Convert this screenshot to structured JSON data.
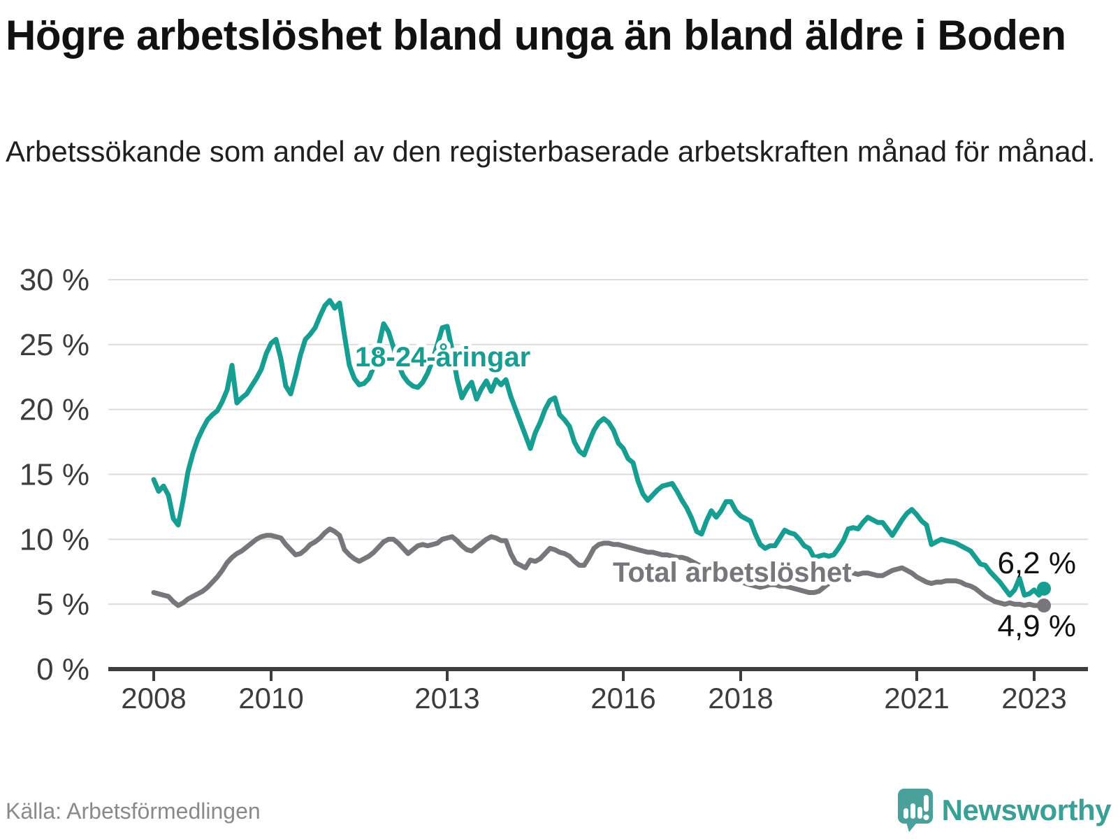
{
  "header": {
    "title": "Högre arbetslöshet bland unga än bland äldre i Boden",
    "subtitle": "Arbetssökande som andel av den registerbaserade arbetskraften månad för månad."
  },
  "footer": {
    "source": "Källa: Arbetsförmedlingen",
    "brand_name": "Newsworthy",
    "brand_color": "#3aa096",
    "brand_icon": "speech-bubble-bar-chart-exclamation"
  },
  "chart_data": {
    "type": "line",
    "title": "Högre arbetslöshet bland unga än bland äldre i Boden",
    "xlabel": "",
    "ylabel": "",
    "ylim": [
      0,
      30
    ],
    "grid": "horizontal",
    "x_start": "2008-01",
    "x_end": "2023-03",
    "x_unit": "month",
    "y_ticks": [
      {
        "label": "0 %",
        "value": 0
      },
      {
        "label": "5 %",
        "value": 5
      },
      {
        "label": "10 %",
        "value": 10
      },
      {
        "label": "15 %",
        "value": 15
      },
      {
        "label": "20 %",
        "value": 20
      },
      {
        "label": "25 %",
        "value": 25
      },
      {
        "label": "30 %",
        "value": 30
      }
    ],
    "x_ticks": [
      {
        "label": "2008",
        "month": 0
      },
      {
        "label": "2010",
        "month": 24
      },
      {
        "label": "2013",
        "month": 60
      },
      {
        "label": "2016",
        "month": 96
      },
      {
        "label": "2018",
        "month": 120
      },
      {
        "label": "2021",
        "month": 156
      },
      {
        "label": "2023",
        "month": 180
      }
    ],
    "series": [
      {
        "name": "18-24-åringar",
        "color": "#169e92",
        "end_label": "6,2 %",
        "end_value": 6.2,
        "values": [
          14.6,
          13.7,
          14.1,
          13.4,
          11.6,
          11.1,
          13.0,
          15.2,
          16.6,
          17.7,
          18.5,
          19.2,
          19.6,
          19.9,
          20.6,
          21.5,
          23.4,
          20.5,
          20.9,
          21.2,
          21.8,
          22.4,
          23.1,
          24.3,
          25.1,
          25.4,
          23.9,
          21.8,
          21.2,
          22.6,
          24.2,
          25.4,
          25.8,
          26.3,
          27.2,
          28.0,
          28.4,
          27.8,
          28.2,
          25.7,
          23.4,
          22.4,
          21.9,
          22.0,
          22.4,
          23.3,
          24.9,
          26.6,
          26.0,
          24.8,
          23.5,
          22.6,
          22.1,
          21.8,
          21.7,
          22.1,
          22.8,
          23.8,
          25.0,
          26.3,
          26.4,
          24.6,
          22.4,
          20.9,
          21.6,
          22.1,
          20.8,
          21.6,
          22.2,
          21.4,
          22.3,
          21.9,
          22.3,
          21.0,
          20.0,
          19.0,
          18.0,
          17.0,
          18.2,
          19.0,
          20.0,
          20.7,
          20.9,
          19.6,
          19.2,
          18.7,
          17.5,
          16.8,
          16.5,
          17.5,
          18.4,
          19.0,
          19.3,
          19.0,
          18.4,
          17.4,
          17.0,
          16.2,
          15.9,
          14.5,
          13.5,
          13.0,
          13.4,
          13.8,
          14.1,
          14.2,
          14.3,
          13.7,
          13.0,
          12.4,
          11.6,
          10.6,
          10.4,
          11.4,
          12.2,
          11.7,
          12.2,
          12.9,
          12.9,
          12.2,
          11.8,
          11.6,
          11.4,
          10.4,
          9.6,
          9.3,
          9.5,
          9.5,
          10.1,
          10.7,
          10.5,
          10.4,
          10.0,
          9.5,
          9.3,
          8.6,
          8.7,
          8.8,
          8.7,
          8.8,
          9.3,
          9.9,
          10.8,
          10.9,
          10.8,
          11.3,
          11.7,
          11.5,
          11.3,
          11.3,
          10.8,
          10.3,
          10.9,
          11.5,
          12.0,
          12.3,
          11.9,
          11.4,
          11.1,
          9.6,
          9.8,
          10.0,
          9.9,
          9.8,
          9.7,
          9.5,
          9.3,
          9.1,
          8.6,
          8.1,
          8.0,
          7.5,
          7.1,
          6.7,
          6.2,
          5.7,
          6.1,
          7.0,
          5.7,
          5.8,
          6.1,
          5.7,
          6.2
        ]
      },
      {
        "name": "Total arbetslöshet",
        "color": "#76767b",
        "end_label": "4,9 %",
        "end_value": 4.9,
        "values": [
          5.9,
          5.8,
          5.7,
          5.6,
          5.2,
          4.9,
          5.1,
          5.4,
          5.6,
          5.8,
          6.0,
          6.3,
          6.7,
          7.1,
          7.6,
          8.2,
          8.6,
          8.9,
          9.1,
          9.4,
          9.7,
          10.0,
          10.2,
          10.3,
          10.3,
          10.2,
          10.1,
          9.6,
          9.2,
          8.8,
          8.9,
          9.2,
          9.6,
          9.8,
          10.1,
          10.5,
          10.8,
          10.6,
          10.3,
          9.2,
          8.8,
          8.5,
          8.3,
          8.5,
          8.7,
          9.0,
          9.4,
          9.8,
          10.0,
          10.0,
          9.7,
          9.3,
          8.9,
          9.2,
          9.5,
          9.6,
          9.5,
          9.6,
          9.7,
          10.0,
          10.1,
          10.2,
          9.9,
          9.5,
          9.2,
          9.1,
          9.4,
          9.7,
          10.0,
          10.2,
          10.1,
          9.9,
          9.9,
          8.9,
          8.2,
          8.0,
          7.8,
          8.4,
          8.3,
          8.5,
          8.9,
          9.3,
          9.2,
          9.0,
          8.9,
          8.7,
          8.3,
          8.0,
          8.0,
          8.6,
          9.3,
          9.6,
          9.7,
          9.7,
          9.6,
          9.6,
          9.5,
          9.4,
          9.3,
          9.2,
          9.1,
          9.0,
          9.0,
          8.9,
          8.8,
          8.8,
          8.7,
          8.6,
          8.6,
          8.5,
          8.3,
          8.1,
          7.9,
          7.7,
          7.6,
          7.4,
          7.3,
          7.2,
          7.1,
          7.0,
          6.8,
          6.6,
          6.5,
          6.4,
          6.3,
          6.4,
          6.5,
          6.5,
          6.4,
          6.4,
          6.3,
          6.2,
          6.1,
          6.0,
          5.9,
          5.9,
          6.0,
          6.3,
          6.6,
          6.9,
          7.1,
          7.2,
          7.3,
          7.4,
          7.3,
          7.4,
          7.4,
          7.3,
          7.2,
          7.2,
          7.4,
          7.6,
          7.7,
          7.8,
          7.6,
          7.4,
          7.1,
          6.9,
          6.7,
          6.6,
          6.7,
          6.7,
          6.8,
          6.8,
          6.8,
          6.7,
          6.5,
          6.4,
          6.2,
          5.9,
          5.6,
          5.4,
          5.2,
          5.1,
          5.0,
          5.1,
          5.0,
          5.0,
          4.9,
          5.0,
          4.9,
          4.9,
          4.9
        ]
      }
    ]
  }
}
